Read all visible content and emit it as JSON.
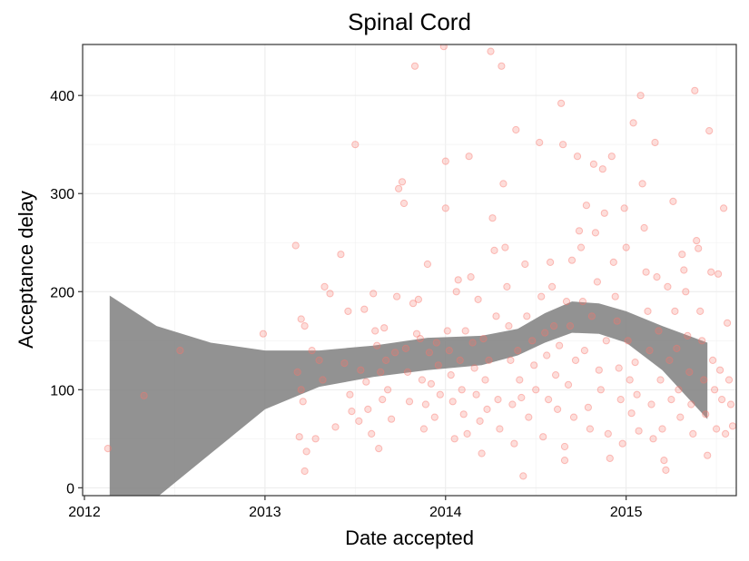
{
  "chart_data": {
    "type": "scatter",
    "title": "Spinal Cord",
    "xlabel": "Date accepted",
    "ylabel": "Acceptance delay",
    "xlim": [
      2011.99,
      2015.61
    ],
    "ylim": [
      -8,
      452
    ],
    "x_ticks": [
      2012,
      2013,
      2014,
      2015
    ],
    "x_tick_labels": [
      "2012",
      "2013",
      "2014",
      "2015"
    ],
    "y_ticks": [
      0,
      100,
      200,
      300,
      400
    ],
    "y_tick_labels": [
      "0",
      "100",
      "200",
      "300",
      "400"
    ],
    "grid": true,
    "point_color": "#f8766d",
    "ribbon_color": "#7f7f7f",
    "smooth_band": {
      "x": [
        2012.14,
        2012.4,
        2012.7,
        2013.0,
        2013.3,
        2013.6,
        2013.9,
        2014.2,
        2014.4,
        2014.55,
        2014.7,
        2014.85,
        2015.0,
        2015.2,
        2015.45
      ],
      "upper": [
        196,
        165,
        148,
        140,
        140,
        145,
        153,
        155,
        162,
        178,
        190,
        188,
        180,
        165,
        148
      ],
      "lower": [
        -10,
        -10,
        35,
        80,
        103,
        113,
        120,
        125,
        135,
        148,
        158,
        157,
        148,
        120,
        70
      ]
    },
    "points": [
      [
        2012.13,
        40
      ],
      [
        2012.33,
        94
      ],
      [
        2012.53,
        140
      ],
      [
        2012.99,
        157
      ],
      [
        2013.17,
        247
      ],
      [
        2013.2,
        172
      ],
      [
        2013.22,
        165
      ],
      [
        2013.26,
        140
      ],
      [
        2013.18,
        118
      ],
      [
        2013.2,
        100
      ],
      [
        2013.21,
        88
      ],
      [
        2013.19,
        52
      ],
      [
        2013.23,
        37
      ],
      [
        2013.22,
        17
      ],
      [
        2013.28,
        50
      ],
      [
        2013.3,
        130
      ],
      [
        2013.32,
        110
      ],
      [
        2013.33,
        205
      ],
      [
        2013.36,
        198
      ],
      [
        2013.39,
        62
      ],
      [
        2013.42,
        238
      ],
      [
        2013.44,
        127
      ],
      [
        2013.46,
        180
      ],
      [
        2013.47,
        95
      ],
      [
        2013.48,
        78
      ],
      [
        2013.5,
        350
      ],
      [
        2013.52,
        68
      ],
      [
        2013.53,
        120
      ],
      [
        2013.55,
        182
      ],
      [
        2013.56,
        108
      ],
      [
        2013.57,
        80
      ],
      [
        2013.59,
        55
      ],
      [
        2013.6,
        198
      ],
      [
        2013.61,
        160
      ],
      [
        2013.62,
        145
      ],
      [
        2013.63,
        40
      ],
      [
        2013.64,
        118
      ],
      [
        2013.65,
        90
      ],
      [
        2013.66,
        163
      ],
      [
        2013.67,
        130
      ],
      [
        2013.68,
        100
      ],
      [
        2013.7,
        70
      ],
      [
        2013.72,
        138
      ],
      [
        2013.73,
        195
      ],
      [
        2013.74,
        305
      ],
      [
        2013.76,
        312
      ],
      [
        2013.77,
        290
      ],
      [
        2013.78,
        142
      ],
      [
        2013.79,
        118
      ],
      [
        2013.8,
        88
      ],
      [
        2013.82,
        188
      ],
      [
        2013.83,
        430
      ],
      [
        2013.84,
        157
      ],
      [
        2013.85,
        192
      ],
      [
        2013.86,
        152
      ],
      [
        2013.87,
        110
      ],
      [
        2013.88,
        60
      ],
      [
        2013.89,
        85
      ],
      [
        2013.9,
        228
      ],
      [
        2013.91,
        138
      ],
      [
        2013.92,
        106
      ],
      [
        2013.94,
        72
      ],
      [
        2013.95,
        148
      ],
      [
        2013.96,
        125
      ],
      [
        2013.97,
        95
      ],
      [
        2013.99,
        450
      ],
      [
        2014.0,
        333
      ],
      [
        2014.0,
        285
      ],
      [
        2014.01,
        160
      ],
      [
        2014.02,
        140
      ],
      [
        2014.03,
        115
      ],
      [
        2014.04,
        88
      ],
      [
        2014.05,
        50
      ],
      [
        2014.06,
        200
      ],
      [
        2014.07,
        212
      ],
      [
        2014.08,
        130
      ],
      [
        2014.09,
        100
      ],
      [
        2014.1,
        75
      ],
      [
        2014.11,
        160
      ],
      [
        2014.12,
        55
      ],
      [
        2014.13,
        338
      ],
      [
        2014.14,
        215
      ],
      [
        2014.15,
        148
      ],
      [
        2014.16,
        122
      ],
      [
        2014.17,
        95
      ],
      [
        2014.18,
        192
      ],
      [
        2014.19,
        68
      ],
      [
        2014.2,
        35
      ],
      [
        2014.21,
        152
      ],
      [
        2014.22,
        110
      ],
      [
        2014.23,
        80
      ],
      [
        2014.24,
        130
      ],
      [
        2014.25,
        445
      ],
      [
        2014.26,
        275
      ],
      [
        2014.27,
        242
      ],
      [
        2014.28,
        175
      ],
      [
        2014.29,
        90
      ],
      [
        2014.3,
        60
      ],
      [
        2014.31,
        430
      ],
      [
        2014.32,
        310
      ],
      [
        2014.33,
        245
      ],
      [
        2014.34,
        205
      ],
      [
        2014.35,
        165
      ],
      [
        2014.36,
        130
      ],
      [
        2014.37,
        85
      ],
      [
        2014.38,
        45
      ],
      [
        2014.39,
        365
      ],
      [
        2014.4,
        140
      ],
      [
        2014.41,
        110
      ],
      [
        2014.42,
        92
      ],
      [
        2014.43,
        12
      ],
      [
        2014.44,
        228
      ],
      [
        2014.45,
        175
      ],
      [
        2014.46,
        72
      ],
      [
        2014.48,
        150
      ],
      [
        2014.49,
        125
      ],
      [
        2014.5,
        100
      ],
      [
        2014.52,
        352
      ],
      [
        2014.53,
        195
      ],
      [
        2014.54,
        52
      ],
      [
        2014.55,
        158
      ],
      [
        2014.56,
        135
      ],
      [
        2014.57,
        90
      ],
      [
        2014.58,
        230
      ],
      [
        2014.59,
        205
      ],
      [
        2014.6,
        165
      ],
      [
        2014.61,
        115
      ],
      [
        2014.62,
        80
      ],
      [
        2014.63,
        145
      ],
      [
        2014.64,
        392
      ],
      [
        2014.65,
        350
      ],
      [
        2014.66,
        28
      ],
      [
        2014.66,
        42
      ],
      [
        2014.67,
        190
      ],
      [
        2014.68,
        105
      ],
      [
        2014.69,
        165
      ],
      [
        2014.7,
        232
      ],
      [
        2014.71,
        72
      ],
      [
        2014.72,
        130
      ],
      [
        2014.73,
        338
      ],
      [
        2014.74,
        262
      ],
      [
        2014.75,
        245
      ],
      [
        2014.76,
        190
      ],
      [
        2014.77,
        140
      ],
      [
        2014.78,
        288
      ],
      [
        2014.79,
        82
      ],
      [
        2014.8,
        60
      ],
      [
        2014.81,
        175
      ],
      [
        2014.82,
        330
      ],
      [
        2014.83,
        260
      ],
      [
        2014.84,
        210
      ],
      [
        2014.85,
        120
      ],
      [
        2014.86,
        100
      ],
      [
        2014.87,
        325
      ],
      [
        2014.88,
        280
      ],
      [
        2014.89,
        150
      ],
      [
        2014.9,
        55
      ],
      [
        2014.91,
        30
      ],
      [
        2014.92,
        338
      ],
      [
        2014.93,
        230
      ],
      [
        2014.94,
        195
      ],
      [
        2014.95,
        170
      ],
      [
        2014.96,
        122
      ],
      [
        2014.97,
        90
      ],
      [
        2014.98,
        45
      ],
      [
        2014.99,
        285
      ],
      [
        2015.0,
        245
      ],
      [
        2015.01,
        150
      ],
      [
        2015.02,
        110
      ],
      [
        2015.03,
        76
      ],
      [
        2015.04,
        372
      ],
      [
        2015.05,
        128
      ],
      [
        2015.06,
        95
      ],
      [
        2015.07,
        58
      ],
      [
        2015.08,
        400
      ],
      [
        2015.09,
        310
      ],
      [
        2015.1,
        265
      ],
      [
        2015.11,
        220
      ],
      [
        2015.12,
        180
      ],
      [
        2015.13,
        140
      ],
      [
        2015.14,
        85
      ],
      [
        2015.15,
        50
      ],
      [
        2015.16,
        352
      ],
      [
        2015.17,
        215
      ],
      [
        2015.18,
        160
      ],
      [
        2015.19,
        110
      ],
      [
        2015.2,
        60
      ],
      [
        2015.21,
        28
      ],
      [
        2015.22,
        18
      ],
      [
        2015.23,
        205
      ],
      [
        2015.24,
        130
      ],
      [
        2015.25,
        90
      ],
      [
        2015.26,
        292
      ],
      [
        2015.27,
        180
      ],
      [
        2015.28,
        142
      ],
      [
        2015.29,
        100
      ],
      [
        2015.3,
        72
      ],
      [
        2015.31,
        238
      ],
      [
        2015.32,
        222
      ],
      [
        2015.33,
        200
      ],
      [
        2015.34,
        155
      ],
      [
        2015.35,
        118
      ],
      [
        2015.36,
        85
      ],
      [
        2015.37,
        55
      ],
      [
        2015.38,
        405
      ],
      [
        2015.39,
        252
      ],
      [
        2015.4,
        244
      ],
      [
        2015.41,
        180
      ],
      [
        2015.42,
        150
      ],
      [
        2015.43,
        110
      ],
      [
        2015.44,
        75
      ],
      [
        2015.45,
        33
      ],
      [
        2015.46,
        364
      ],
      [
        2015.47,
        220
      ],
      [
        2015.48,
        130
      ],
      [
        2015.49,
        100
      ],
      [
        2015.5,
        60
      ],
      [
        2015.51,
        218
      ],
      [
        2015.52,
        120
      ],
      [
        2015.53,
        90
      ],
      [
        2015.54,
        285
      ],
      [
        2015.55,
        55
      ],
      [
        2015.56,
        168
      ],
      [
        2015.57,
        110
      ],
      [
        2015.58,
        85
      ],
      [
        2015.59,
        63
      ]
    ]
  }
}
